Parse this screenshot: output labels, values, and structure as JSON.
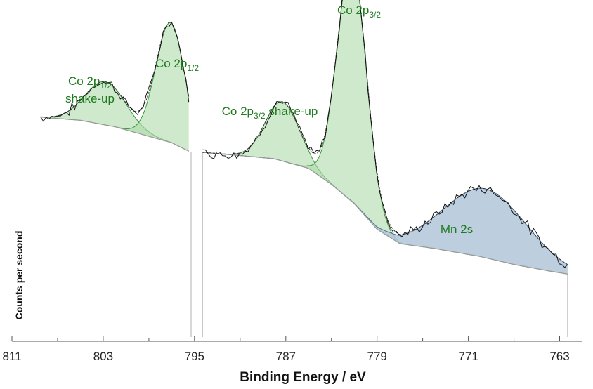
{
  "chart_data": {
    "type": "area",
    "title": "",
    "xlabel": "Binding Energy / eV",
    "ylabel": "Counts per second",
    "xlim": [
      811,
      761
    ],
    "x_reversed": true,
    "ylim": [
      0,
      1
    ],
    "xticks": [
      811,
      803,
      795,
      787,
      779,
      771,
      763
    ],
    "grid": false,
    "x_step": 0.25,
    "background": {
      "description": "Shirley-type background",
      "segments": [
        {
          "x": [
            808.5,
            805,
            802,
            799,
            797,
            795.3
          ],
          "y": [
            0.7,
            0.69,
            0.67,
            0.64,
            0.62,
            0.59
          ]
        },
        {
          "x": [
            794.3,
            791,
            788,
            785,
            783,
            781,
            779,
            777,
            774,
            770,
            767,
            764,
            762.3
          ],
          "y": [
            0.59,
            0.58,
            0.57,
            0.54,
            0.49,
            0.43,
            0.35,
            0.305,
            0.29,
            0.265,
            0.24,
            0.22,
            0.21
          ]
        }
      ]
    },
    "components": [
      {
        "name": "Co 2p1/2 shake-up",
        "center": 802.8,
        "fwhm": 4.2,
        "height": 0.135,
        "region": [
          808.5,
          795.3
        ],
        "fill": "#aedaaa"
      },
      {
        "name": "Co 2p1/2",
        "center": 797.1,
        "fwhm": 3.0,
        "height": 0.375,
        "region": [
          808.5,
          795.3
        ],
        "fill": "#aedaaa"
      },
      {
        "name": "Co 2p3/2 shake-up",
        "center": 787.3,
        "fwhm": 3.5,
        "height": 0.185,
        "region": [
          794.3,
          762.3
        ],
        "fill": "#aedaaa"
      },
      {
        "name": "Co 2p3/2",
        "center": 781.2,
        "fwhm": 3.0,
        "height": 0.75,
        "region": [
          794.3,
          762.3
        ],
        "fill": "#aedaaa"
      },
      {
        "name": "Mn 2s",
        "center": 769.5,
        "fwhm": 8.5,
        "height": 0.215,
        "region": [
          794.3,
          762.3
        ],
        "fill": "#b2c6d8"
      }
    ],
    "gap": [
      795.3,
      794.3
    ],
    "noise_amplitude": 0.012,
    "colors": {
      "co_fill": "#aedaaa",
      "co_edge": "#3c963c",
      "mn_fill": "#b2c6d8",
      "mn_edge": "#4a6f96",
      "background_line": "#9a9a9a",
      "raw_data": "#111111",
      "envelope": "#333333",
      "label": "#1e7a1e",
      "gap_line": "#b0b0b0"
    },
    "annotations": [
      {
        "id": "co2p12-shake",
        "lines": [
          [
            "Co 2p",
            "1/2",
            ""
          ],
          [
            "shake-up",
            "",
            ""
          ]
        ]
      },
      {
        "id": "co2p12",
        "lines": [
          [
            "Co 2p",
            "1/2",
            ""
          ]
        ]
      },
      {
        "id": "co2p32-shake",
        "lines": [
          [
            "Co 2p",
            "3/2",
            " shake-up"
          ]
        ]
      },
      {
        "id": "co2p32",
        "lines": [
          [
            "Co 2p",
            "3/2",
            ""
          ]
        ]
      },
      {
        "id": "mn2s",
        "lines": [
          [
            "Mn 2s",
            "",
            ""
          ]
        ]
      }
    ]
  }
}
